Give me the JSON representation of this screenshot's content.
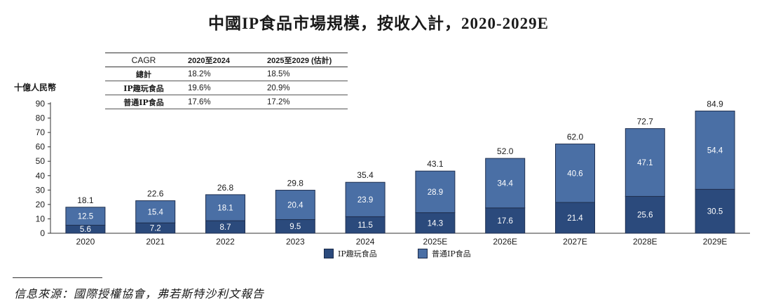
{
  "title": "中國IP食品市場規模，按收入計，2020-2029E",
  "unit_label": "十億人民幣",
  "cagr_table": {
    "header": [
      "CAGR",
      "2020至2024",
      "2025至2029 (估計)"
    ],
    "rows": [
      [
        "總計",
        "18.2%",
        "18.5%"
      ],
      [
        "IP趣玩食品",
        "19.6%",
        "20.9%"
      ],
      [
        "普通IP食品",
        "17.6%",
        "17.2%"
      ]
    ]
  },
  "source": "信息來源：國際授權協會，弗若斯特沙利文報告",
  "colors": {
    "series1": "#2b4a7c",
    "series2": "#4a6fa5",
    "edge": "#1f2f4f"
  },
  "chart_data": {
    "type": "bar",
    "stacked": true,
    "title": "中國IP食品市場規模，按收入計，2020-2029E",
    "ylabel": "十億人民幣",
    "xlabel": "",
    "ylim": [
      0,
      90
    ],
    "yticks": [
      0,
      10,
      20,
      30,
      40,
      50,
      60,
      70,
      80,
      90
    ],
    "categories": [
      "2020",
      "2021",
      "2022",
      "2023",
      "2024",
      "2025E",
      "2026E",
      "2027E",
      "2028E",
      "2029E"
    ],
    "series": [
      {
        "name": "IP趣玩食品",
        "values": [
          5.6,
          7.2,
          8.7,
          9.5,
          11.5,
          14.3,
          17.6,
          21.4,
          25.6,
          30.5
        ]
      },
      {
        "name": "普通IP食品",
        "values": [
          12.5,
          15.4,
          18.1,
          20.4,
          23.9,
          28.9,
          34.4,
          40.6,
          47.1,
          54.4
        ]
      }
    ],
    "totals": [
      18.1,
      22.6,
      26.8,
      29.8,
      35.4,
      43.1,
      52.0,
      62.0,
      72.7,
      84.9
    ],
    "legend_position": "bottom-center"
  }
}
